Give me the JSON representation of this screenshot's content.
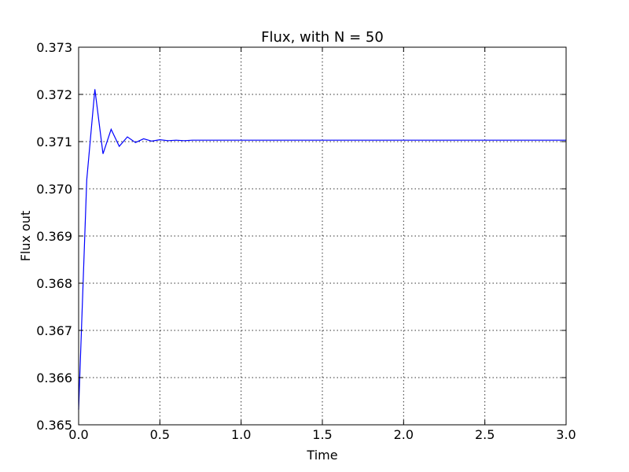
{
  "chart_data": {
    "type": "line",
    "title": "Flux, with N = 50",
    "xlabel": "Time",
    "ylabel": "Flux out",
    "xlim": [
      0.0,
      3.0
    ],
    "ylim": [
      0.365,
      0.373
    ],
    "xticks": [
      "0.0",
      "0.5",
      "1.0",
      "1.5",
      "2.0",
      "2.5",
      "3.0"
    ],
    "yticks": [
      "0.365",
      "0.366",
      "0.367",
      "0.368",
      "0.369",
      "0.370",
      "0.371",
      "0.372",
      "0.373"
    ],
    "grid": true,
    "series": [
      {
        "color": "#0000ff",
        "x": [
          0.0,
          0.05,
          0.1,
          0.15,
          0.2,
          0.25,
          0.3,
          0.35,
          0.4,
          0.45,
          0.5,
          0.55,
          0.6,
          0.65,
          0.7,
          0.8,
          0.9,
          1.0,
          1.5,
          2.0,
          2.5,
          3.0
        ],
        "y": [
          0.36532,
          0.37019,
          0.37211,
          0.37074,
          0.37126,
          0.3709,
          0.3711,
          0.37098,
          0.37106,
          0.37101,
          0.37104,
          0.37102,
          0.37103,
          0.37102,
          0.37103,
          0.37103,
          0.37103,
          0.37103,
          0.37103,
          0.37103,
          0.37103,
          0.37103
        ]
      }
    ]
  }
}
